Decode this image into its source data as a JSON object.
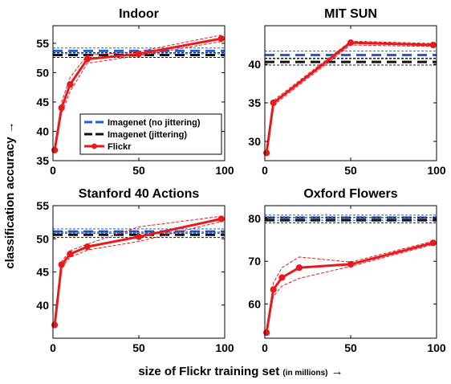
{
  "figure": {
    "ylabel": "classification accuracy →",
    "xlabel_main": "size of Flickr training set",
    "xlabel_unit": "(in millions)",
    "xlabel_arrow": "→"
  },
  "colors": {
    "flickr": "#e8191c",
    "imagenet_no_jitter": "#1f5fd6",
    "imagenet_jitter": "#111111"
  },
  "legend": [
    "Imagenet (no jittering)",
    "Imagenet (jittering)",
    "Flickr"
  ],
  "chart_data": [
    {
      "type": "line",
      "title": "Indoor",
      "xlim": [
        0,
        100
      ],
      "ylim": [
        35,
        58
      ],
      "xticks": [
        0,
        50,
        100
      ],
      "yticks": [
        35,
        40,
        45,
        50,
        55
      ],
      "legend_placement": "bottom-right",
      "series": [
        {
          "name": "Flickr",
          "x": [
            1,
            5,
            10,
            20,
            50,
            98
          ],
          "y": [
            36.8,
            44.0,
            48.0,
            52.3,
            53.2,
            55.8
          ],
          "band_upper": [
            36.8,
            45.0,
            49.2,
            53.0,
            53.6,
            56.4
          ],
          "band_lower": [
            36.8,
            43.1,
            46.8,
            51.6,
            52.9,
            55.3
          ]
        },
        {
          "name": "Imagenet (no jittering)",
          "y": 53.7,
          "band": [
            53.2,
            54.2
          ]
        },
        {
          "name": "Imagenet (jittering)",
          "y": 53.0,
          "band": [
            52.6,
            53.4
          ]
        }
      ]
    },
    {
      "type": "line",
      "title": "MIT SUN",
      "xlim": [
        0,
        100
      ],
      "ylim": [
        27.5,
        45
      ],
      "xticks": [
        0,
        50,
        100
      ],
      "yticks": [
        30,
        35,
        40
      ],
      "legend_placement": "none",
      "series": [
        {
          "name": "Flickr",
          "x": [
            1,
            5,
            50,
            98
          ],
          "y": [
            28.5,
            35.0,
            42.8,
            42.5
          ],
          "band_upper": [
            28.5,
            35.3,
            43.0,
            42.7
          ],
          "band_lower": [
            28.5,
            34.7,
            42.5,
            42.3
          ]
        },
        {
          "name": "Imagenet (no jittering)",
          "y": 41.2,
          "band": [
            40.7,
            41.7
          ]
        },
        {
          "name": "Imagenet (jittering)",
          "y": 40.3,
          "band": [
            39.9,
            40.8
          ]
        }
      ]
    },
    {
      "type": "line",
      "title": "Stanford 40 Actions",
      "xlim": [
        0,
        100
      ],
      "ylim": [
        35,
        55
      ],
      "xticks": [
        0,
        50,
        100
      ],
      "yticks": [
        40,
        45,
        50,
        55
      ],
      "legend_placement": "none",
      "series": [
        {
          "name": "Flickr",
          "x": [
            1,
            5,
            10,
            20,
            50,
            98
          ],
          "y": [
            37.0,
            46.1,
            47.7,
            48.8,
            50.3,
            53.0
          ],
          "band_upper": [
            37.0,
            46.6,
            48.2,
            49.2,
            51.8,
            53.4
          ],
          "band_lower": [
            37.0,
            45.7,
            47.2,
            48.3,
            49.6,
            52.6
          ]
        },
        {
          "name": "Imagenet (no jittering)",
          "y": 51.1,
          "band": [
            50.8,
            51.5
          ]
        },
        {
          "name": "Imagenet (jittering)",
          "y": 50.6,
          "band": [
            50.2,
            51.0
          ]
        }
      ]
    },
    {
      "type": "line",
      "title": "Oxford Flowers",
      "xlim": [
        0,
        100
      ],
      "ylim": [
        52,
        83
      ],
      "xticks": [
        0,
        50,
        100
      ],
      "yticks": [
        60,
        70,
        80
      ],
      "legend_placement": "none",
      "series": [
        {
          "name": "Flickr",
          "x": [
            1,
            5,
            10,
            20,
            50,
            98
          ],
          "y": [
            53.3,
            63.4,
            66.2,
            68.5,
            69.3,
            74.3
          ],
          "band_upper": [
            53.3,
            65.0,
            68.5,
            71.0,
            69.8,
            74.7
          ],
          "band_lower": [
            53.3,
            61.8,
            64.2,
            66.0,
            68.8,
            73.9
          ]
        },
        {
          "name": "Imagenet (no jittering)",
          "y": 80.2,
          "band": [
            79.6,
            80.8
          ]
        },
        {
          "name": "Imagenet (jittering)",
          "y": 79.6,
          "band": [
            79.0,
            80.2
          ]
        }
      ]
    }
  ]
}
